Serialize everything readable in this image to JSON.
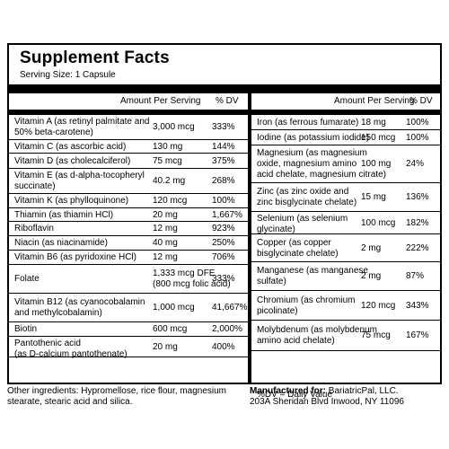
{
  "title": "Supplement Facts",
  "serving_size": "Serving Size: 1 Capsule",
  "headers": {
    "left_amount": "Amount Per Serving",
    "left_dv": "% DV",
    "right_amount": "Amount Per Serving",
    "right_dv": "% DV"
  },
  "left_rows": [
    {
      "name": "Vitamin A (as retinyl palmitate and\n50% beta-carotene)",
      "amount": "3,000 mcg",
      "dv": "333%"
    },
    {
      "name": "Vitamin C (as ascorbic acid)",
      "amount": "130 mg",
      "dv": "144%"
    },
    {
      "name": "Vitamin D (as cholecalciferol)",
      "amount": "75 mcg",
      "dv": "375%"
    },
    {
      "name": "Vitamin E (as d-alpha-tocopheryl\nsuccinate)",
      "amount": "40.2 mg",
      "dv": "268%"
    },
    {
      "name": "Vitamin K (as phylloquinone)",
      "amount": "120 mcg",
      "dv": "100%"
    },
    {
      "name": "Thiamin (as thiamin HCl)",
      "amount": "20 mg",
      "dv": "1,667%"
    },
    {
      "name": "Riboflavin",
      "amount": "12 mg",
      "dv": "923%"
    },
    {
      "name": "Niacin (as niacinamide)",
      "amount": "40 mg",
      "dv": "250%"
    },
    {
      "name": "Vitamin B6 (as pyridoxine HCl)",
      "amount": "12 mg",
      "dv": "706%"
    },
    {
      "name": "Folate",
      "amount": "1,333 mcg DFE\n(800 mcg folic acid)",
      "dv": "333%"
    },
    {
      "name": "Vitamin B12 (as cyanocobalamin\nand methylcobalamin)",
      "amount": "1,000 mcg",
      "dv": "41,667%"
    },
    {
      "name": "Biotin",
      "amount": "600 mcg",
      "dv": "2,000%"
    },
    {
      "name": "Pantothenic acid\n(as D-calcium pantothenate)",
      "amount": "20 mg",
      "dv": "400%"
    }
  ],
  "right_rows": [
    {
      "name": "Iron (as ferrous fumarate)",
      "amount": "18 mg",
      "dv": "100%"
    },
    {
      "name": "Iodine (as potassium iodide)",
      "amount": "150 mcg",
      "dv": "100%"
    },
    {
      "name": "Magnesium (as magnesium\noxide, magnesium amino\nacid chelate, magnesium citrate)",
      "amount": "100 mg",
      "dv": "24%"
    },
    {
      "name": "Zinc (as zinc oxide and\nzinc bisglycinate chelate)",
      "amount": "15 mg",
      "dv": "136%"
    },
    {
      "name": "Selenium (as selenium\nglycinate)",
      "amount": "100 mcg",
      "dv": "182%"
    },
    {
      "name": "Copper (as copper\nbisglycinate chelate)",
      "amount": "2 mg",
      "dv": "222%"
    },
    {
      "name": "Manganese (as manganese\nsulfate)",
      "amount": "2 mg",
      "dv": "87%"
    },
    {
      "name": "Chromium (as chromium\npicolinate)",
      "amount": "120 mcg",
      "dv": "343%"
    },
    {
      "name": "Molybdenum (as molybdenum\namino acid chelate)",
      "amount": "75 mcg",
      "dv": "167%"
    }
  ],
  "dv_note": "%DV = Daily Value",
  "other_ingredients": "Other ingredients: Hypromellose, rice flour, magnesium stearate, stearic acid and silica.",
  "manufacturer": {
    "label": "Manufactured for:",
    "name": "BariatricPal, LLC.",
    "address": "203A Sheridan Blvd  Inwood, NY 11096"
  }
}
